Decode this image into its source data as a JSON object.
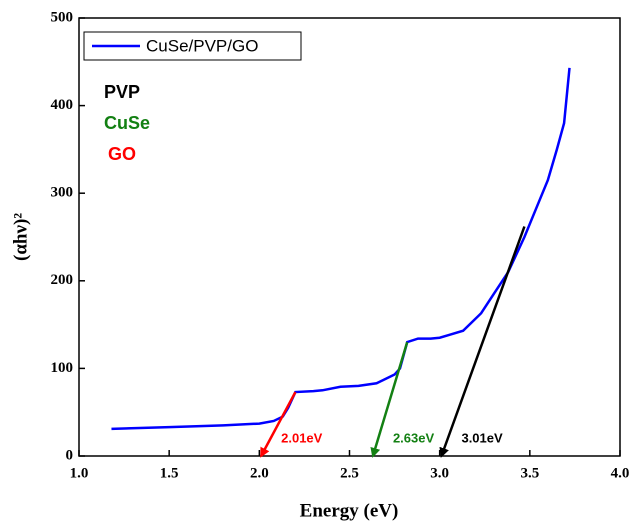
{
  "chart_data": {
    "type": "line",
    "x_label": "Energy (eV)",
    "y_label": "(αhν)²",
    "xlim": [
      1,
      4
    ],
    "ylim": [
      0,
      500
    ],
    "xticks": [
      {
        "value": 1,
        "label": "1.0"
      },
      1.5,
      {
        "value": 2,
        "label": "2.0"
      },
      2.5,
      {
        "value": 3,
        "label": "3.0"
      },
      3.5,
      {
        "value": 4,
        "label": "4.0"
      }
    ],
    "yticks": [
      0,
      100,
      200,
      300,
      400,
      500
    ],
    "legend": "upper left",
    "series": [
      {
        "name": "CuSe/PVP/GO",
        "color": "#0000ff",
        "x": [
          1.18,
          1.5,
          1.8,
          2.0,
          2.08,
          2.13,
          2.16,
          2.2,
          2.3,
          2.35,
          2.45,
          2.55,
          2.65,
          2.75,
          2.78,
          2.82,
          2.88,
          2.95,
          3.0,
          3.05,
          3.13,
          3.23,
          3.3,
          3.38,
          3.47,
          3.55,
          3.6,
          3.65,
          3.69,
          3.72
        ],
        "values": [
          31,
          33,
          35,
          37,
          40,
          45,
          55,
          73,
          74,
          75,
          79,
          80,
          83,
          93,
          100,
          130,
          134,
          134,
          135,
          138,
          143,
          163,
          185,
          210,
          250,
          290,
          315,
          350,
          380,
          443
        ]
      }
    ],
    "notes": [
      {
        "text": "PVP",
        "color": "#000000"
      },
      {
        "text": "CuSe",
        "color": "#138013"
      },
      {
        "text": "GO",
        "color": "#ff0000"
      }
    ],
    "tangents": [
      {
        "label": "2.01eV",
        "color": "#ff0000",
        "x": [
          2.2,
          2.01
        ],
        "y": [
          73,
          0
        ]
      },
      {
        "label": "2.63eV",
        "color": "#138013",
        "x": [
          2.82,
          2.63
        ],
        "y": [
          130,
          0
        ]
      },
      {
        "label": "3.01eV",
        "color": "#000000",
        "x": [
          3.47,
          3.01
        ],
        "y": [
          262,
          0
        ]
      }
    ]
  }
}
